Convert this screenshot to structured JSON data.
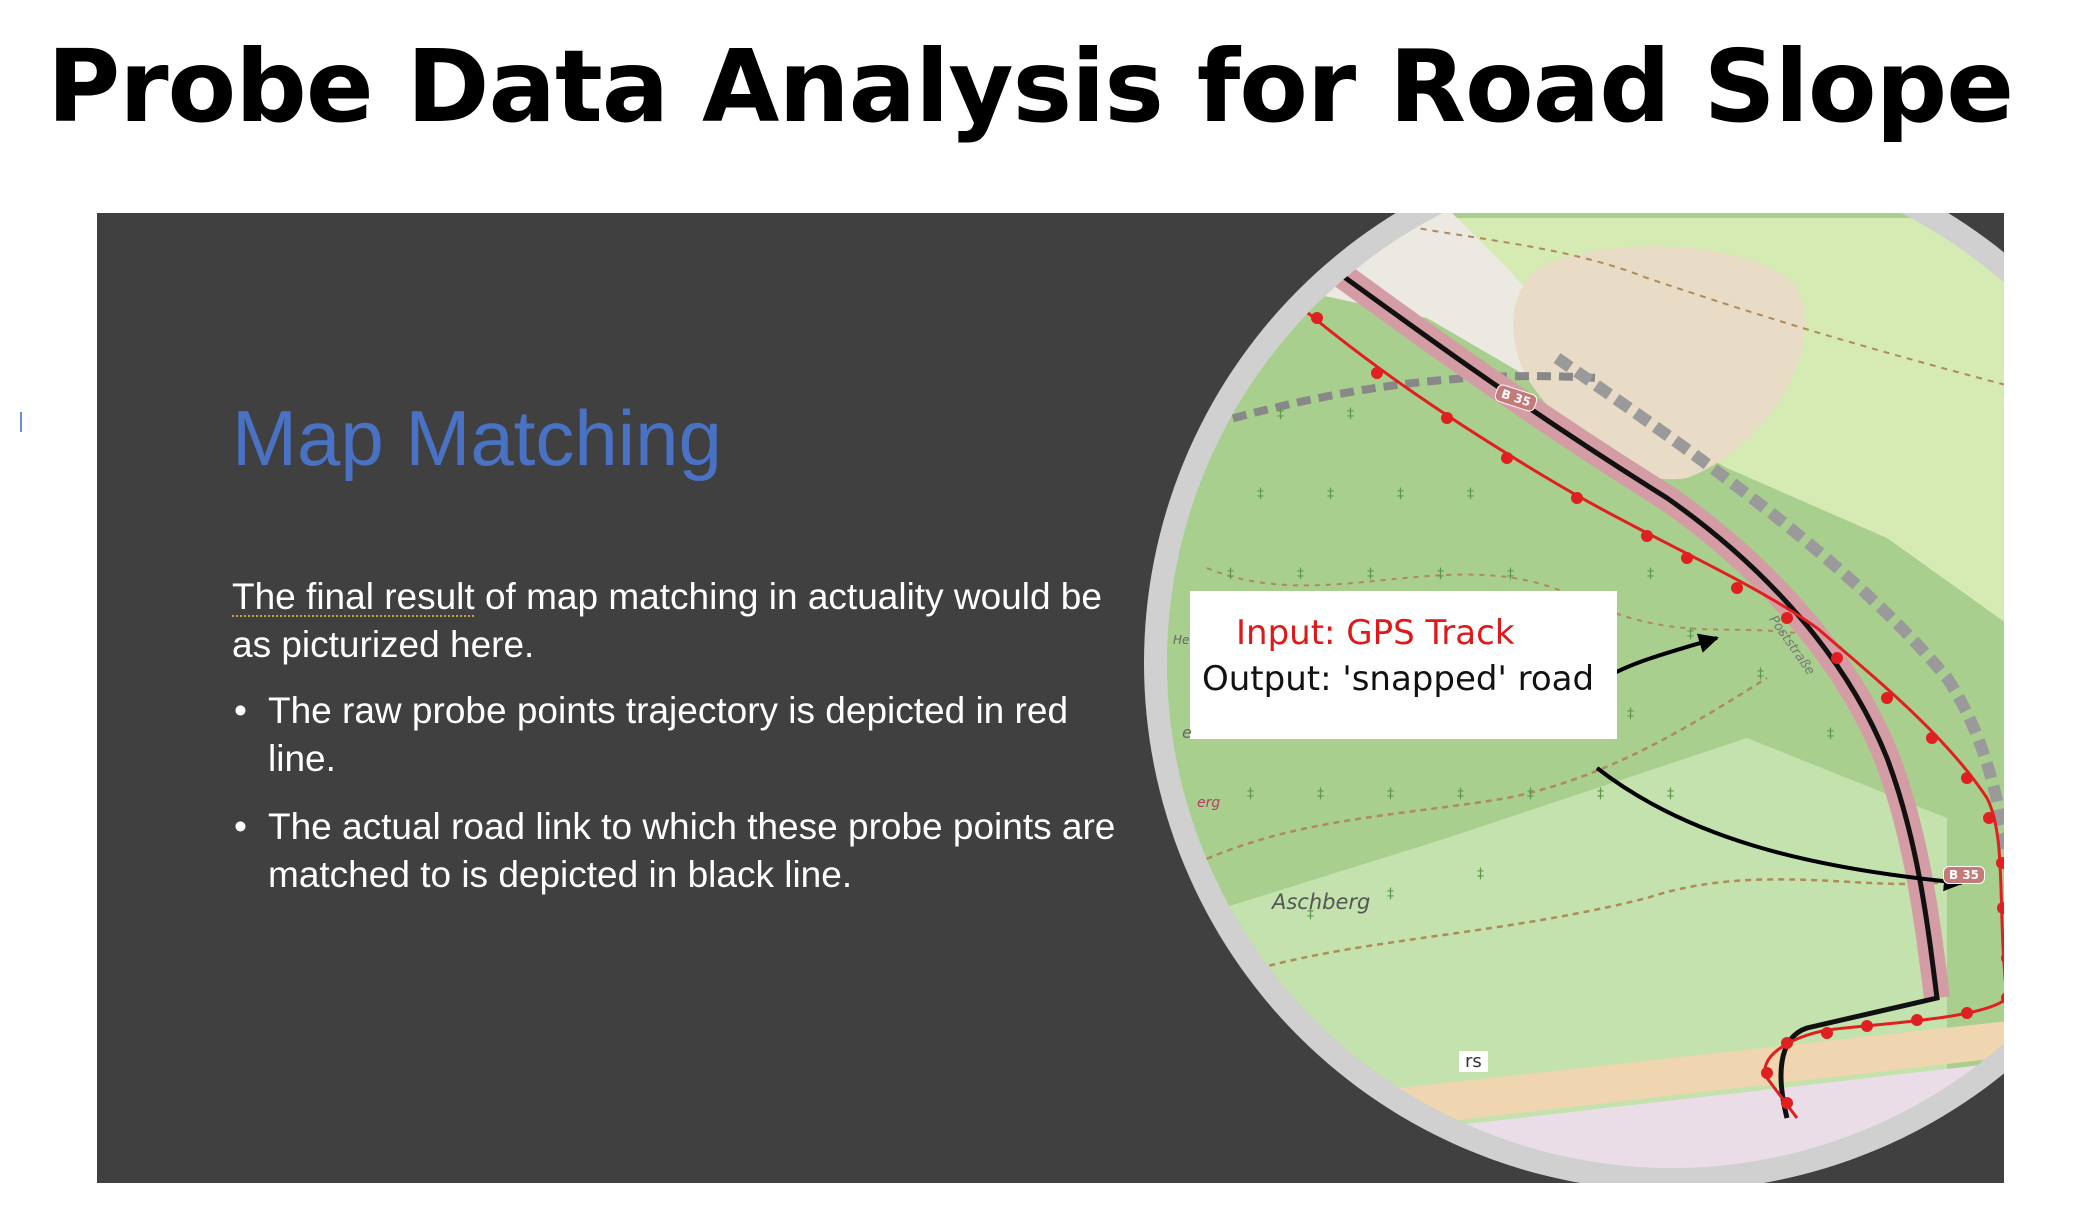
{
  "page": {
    "title": "Probe Data Analysis for Road Slope"
  },
  "slide": {
    "heading": "Map Matching",
    "intro_underlined": "The final result",
    "intro_rest": " of map matching in actuality would be as picturized here.",
    "bullets": [
      "The raw probe points trajectory is depicted in red line.",
      "The actual road link to which these probe points are matched to is depicted in black line."
    ]
  },
  "map": {
    "callout": {
      "input_text": "Input: GPS Track",
      "output_text": "Output: 'snapped' road"
    },
    "labels": {
      "hill": "Aschberg",
      "street": "Poststraße",
      "fragment_a": "erg",
      "fragment_b": "e",
      "fragment_c": "He",
      "bottom": "rs"
    },
    "shields": [
      "B 35",
      "B 35"
    ],
    "colors": {
      "gps_track": "#e02020",
      "snapped_road": "#111111",
      "forest": "#a8cf8e",
      "meadow": "#d6ebb4",
      "slide_bg": "#404040",
      "heading": "#4a72c4"
    }
  }
}
